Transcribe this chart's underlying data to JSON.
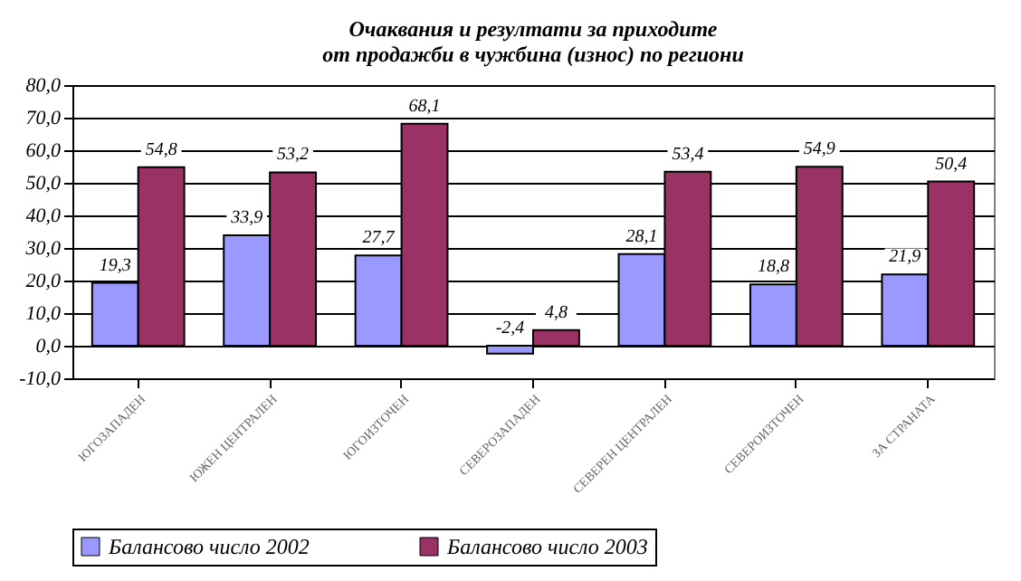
{
  "chart_data": {
    "type": "bar",
    "title": "Очаквания и резултати за приходите\nот продажби в чужбина (износ) по региони",
    "categories": [
      "ЮГОЗАПАДЕН",
      "ЮЖЕН ЦЕНТРАЛЕН",
      "ЮГОИЗТОЧЕН",
      "СЕВЕРОЗАПАДЕН",
      "СЕВЕРЕН ЦЕНТРАЛЕН",
      "СЕВЕРОИЗТОЧЕН",
      "ЗА СТРАНАТА"
    ],
    "series": [
      {
        "name": "Балансово число 2002",
        "color": "#9999ff",
        "values": [
          19.3,
          33.9,
          27.7,
          -2.4,
          28.1,
          18.8,
          21.9
        ],
        "value_labels": [
          "19,3",
          "33,9",
          "27,7",
          "-2,4",
          "28,1",
          "18,8",
          "21,9"
        ]
      },
      {
        "name": "Балансово число 2003",
        "color": "#993366",
        "values": [
          54.8,
          53.2,
          68.1,
          4.8,
          53.4,
          54.9,
          50.4
        ],
        "value_labels": [
          "54,8",
          "53,2",
          "68,1",
          "4,8",
          "53,4",
          "54,9",
          "50,4"
        ]
      }
    ],
    "ylim": [
      -10,
      80
    ],
    "yticks": [
      {
        "value": -10,
        "label": "-10,0"
      },
      {
        "value": 0,
        "label": "0,0"
      },
      {
        "value": 10,
        "label": "10,0"
      },
      {
        "value": 20,
        "label": "20,0"
      },
      {
        "value": 30,
        "label": "30,0"
      },
      {
        "value": 40,
        "label": "40,0"
      },
      {
        "value": 50,
        "label": "50,0"
      },
      {
        "value": 60,
        "label": "60,0"
      },
      {
        "value": 70,
        "label": "70,0"
      },
      {
        "value": 80,
        "label": "80,0"
      }
    ],
    "grid": "y",
    "legend": "bottom"
  }
}
